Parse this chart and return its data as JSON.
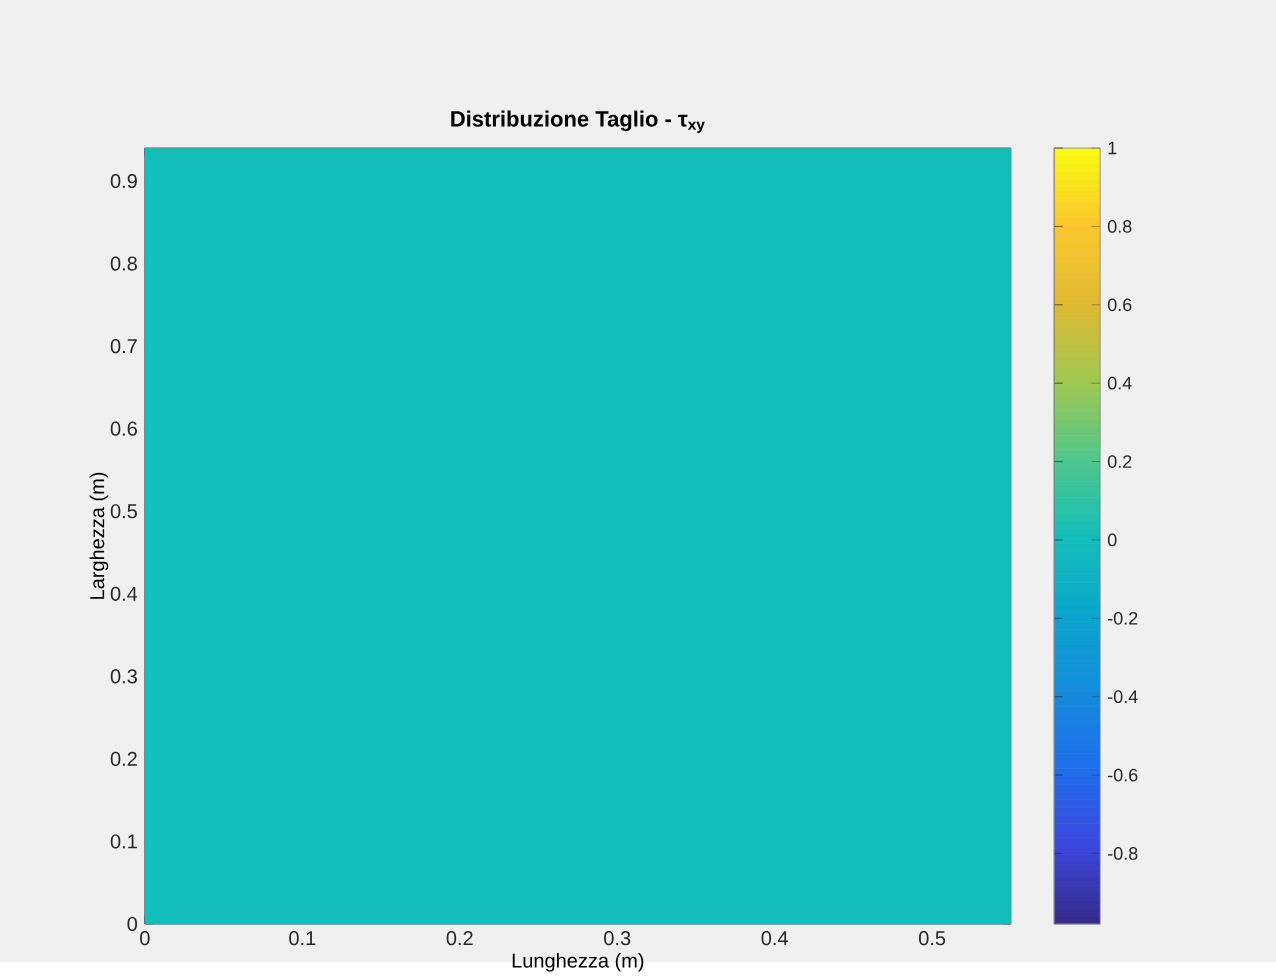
{
  "chart_data": {
    "type": "heatmap",
    "title": "Distribuzione Taglio - τ$_{xy}$",
    "xlabel": "Lunghezza (m)",
    "ylabel": "Larghezza (m)",
    "cells": [
      [
        0
      ]
    ],
    "xlim": [
      0,
      0.55
    ],
    "ylim": [
      0,
      0.94
    ],
    "xticks": [
      0,
      0.1,
      0.2,
      0.3,
      0.4,
      0.5
    ],
    "yticks": [
      0,
      0.1,
      0.2,
      0.3,
      0.4,
      0.5,
      0.6,
      0.7,
      0.8,
      0.9
    ],
    "clim": [
      -0.98,
      1
    ],
    "cticks": [
      -0.8,
      -0.6,
      -0.4,
      -0.2,
      0,
      0.2,
      0.4,
      0.6,
      0.8,
      1
    ],
    "grid": false
  }
}
